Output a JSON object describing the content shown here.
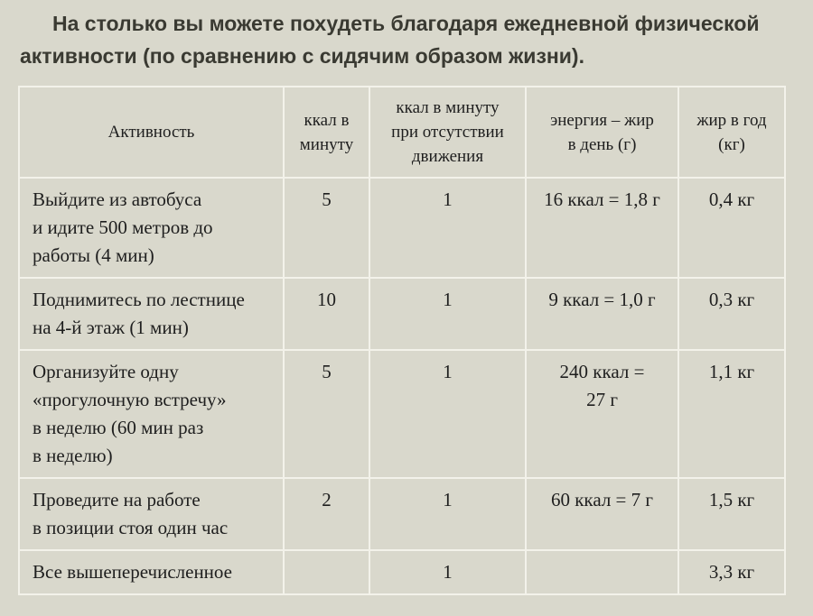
{
  "title": {
    "line1": "На столько вы можете похудеть благодаря ежедневной физической",
    "line2": "активности (по сравнению с сидячим образом жизни)."
  },
  "table": {
    "headers": {
      "activity": "Активность",
      "kcal_per_min": "ккал в\nминуту",
      "kcal_no_move": "ккал в минуту\nпри отсутствии\nдвижения",
      "energy_fat": "энергия – жир\nв день (г)",
      "fat_year": "жир в год\n(кг)"
    },
    "rows": [
      {
        "activity": "Выйдите из автобуса\nи идите 500 метров до\nработы (4 мин)",
        "kcal_per_min": "5",
        "kcal_no_move": "1",
        "energy_fat": "16 ккал = 1,8 г",
        "fat_year": "0,4 кг"
      },
      {
        "activity": "Поднимитесь по лестнице\nна 4-й этаж (1 мин)",
        "kcal_per_min": "10",
        "kcal_no_move": "1",
        "energy_fat": "9 ккал = 1,0 г",
        "fat_year": "0,3 кг"
      },
      {
        "activity": "Организуйте одну\n«прогулочную встречу»\nв неделю (60 мин раз\nв неделю)",
        "kcal_per_min": "5",
        "kcal_no_move": "1",
        "energy_fat": "240 ккал =\n27 г",
        "fat_year": "1,1 кг"
      },
      {
        "activity": "Проведите на работе\nв позиции стоя один час",
        "kcal_per_min": "2",
        "kcal_no_move": "1",
        "energy_fat": "60 ккал = 7 г",
        "fat_year": "1,5 кг"
      },
      {
        "activity": "Все вышеперечисленное",
        "kcal_per_min": "",
        "kcal_no_move": "1",
        "energy_fat": "",
        "fat_year": "3,3 кг"
      }
    ]
  }
}
